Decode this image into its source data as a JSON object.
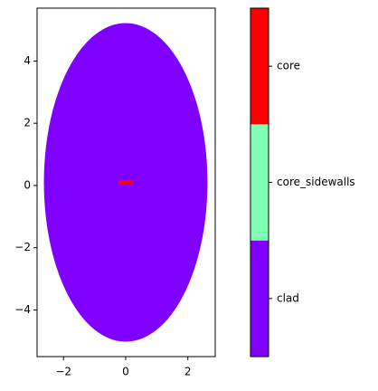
{
  "chart_data": {
    "type": "region_map",
    "xlim": [
      -2.85,
      2.88
    ],
    "ylim": [
      -5.5,
      5.7
    ],
    "xticks": [
      {
        "value": -2,
        "label": "−2"
      },
      0,
      2
    ],
    "yticks": [
      {
        "value": -4,
        "label": "−4"
      },
      {
        "value": -2,
        "label": "−2"
      },
      0,
      2,
      4
    ],
    "series": [
      {
        "name": "clad",
        "color": "#8000ff",
        "shape": "ellipse",
        "cx": 0.0,
        "cy": 0.1,
        "rx": 2.63,
        "ry": 5.12
      },
      {
        "name": "core_sidewalls",
        "color": "#80ffb4"
      },
      {
        "name": "core",
        "color": "#ff0000",
        "shape": "rect",
        "x": [
          -0.23,
          0.26
        ],
        "y": [
          0.03,
          0.17
        ]
      }
    ]
  }
}
